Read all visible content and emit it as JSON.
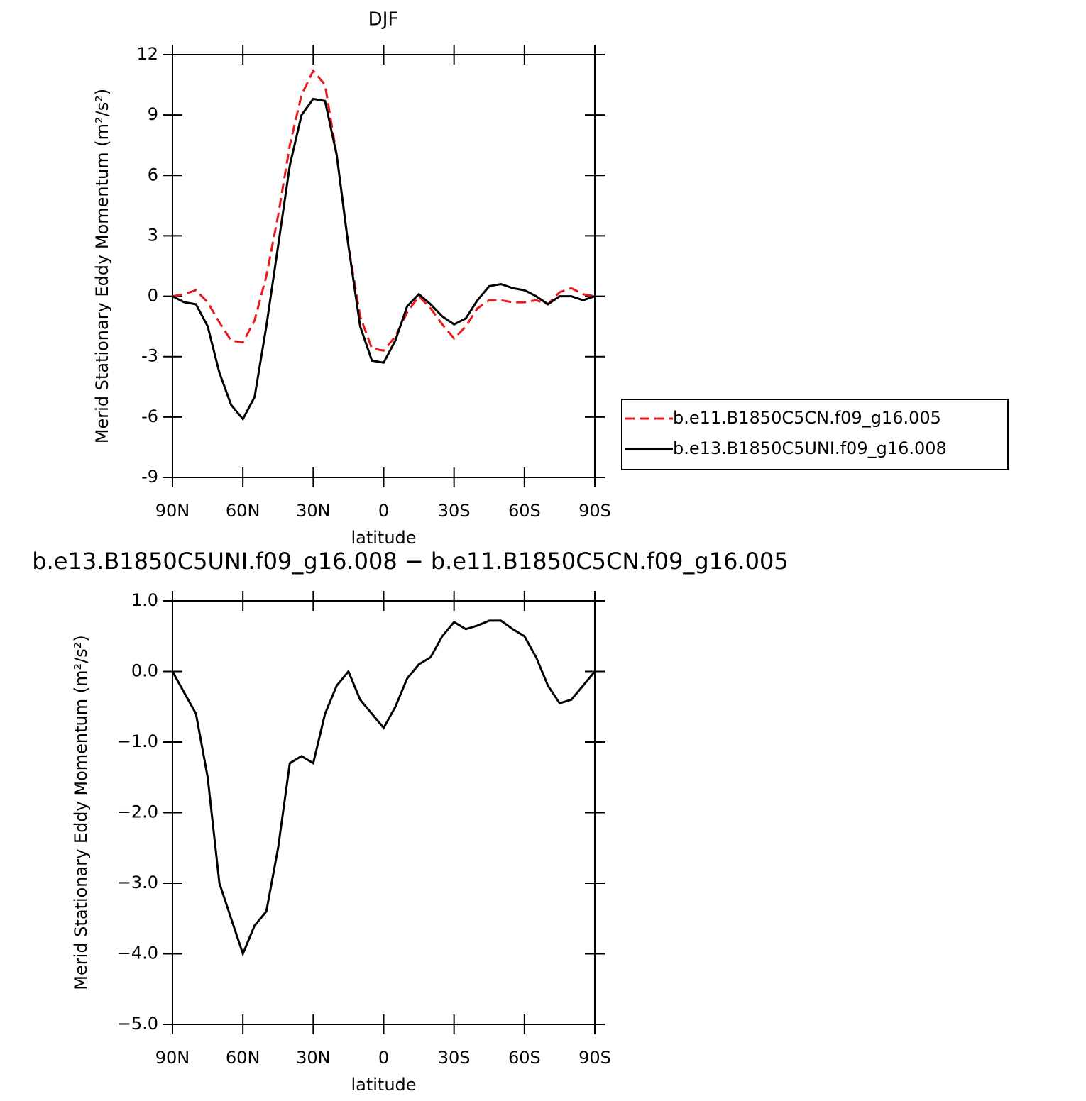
{
  "chart_data": [
    {
      "type": "line",
      "title": "DJF",
      "xlabel": "latitude",
      "ylabel": "Merid Stationary Eddy Momentum (m²/s²)",
      "x": [
        90,
        85,
        80,
        75,
        70,
        65,
        60,
        55,
        50,
        45,
        40,
        35,
        30,
        25,
        20,
        15,
        10,
        5,
        0,
        -5,
        -10,
        -15,
        -20,
        -25,
        -30,
        -35,
        -40,
        -45,
        -50,
        -55,
        -60,
        -65,
        -70,
        -75,
        -80,
        -85,
        -90
      ],
      "xlim": [
        90,
        -90
      ],
      "xticks": [
        {
          "value": 90,
          "label": "90N"
        },
        {
          "value": 60,
          "label": "60N"
        },
        {
          "value": 30,
          "label": "30N"
        },
        0,
        {
          "value": -30,
          "label": "30S"
        },
        {
          "value": -60,
          "label": "60S"
        },
        {
          "value": -90,
          "label": "90S"
        }
      ],
      "ylim": [
        -9,
        12
      ],
      "yticks": [
        12,
        9,
        6,
        3,
        0,
        -3,
        -6,
        -9
      ],
      "series": [
        {
          "name": "b.e11.B1850C5CN.f09_g16.005",
          "color": "#e8191c",
          "dash": true,
          "values": [
            0,
            0.1,
            0.3,
            -0.3,
            -1.3,
            -2.2,
            -2.3,
            -1.2,
            1.0,
            4.0,
            7.5,
            10.0,
            11.2,
            10.5,
            7.0,
            2.5,
            -1.0,
            -2.6,
            -2.7,
            -2.0,
            -0.8,
            0.0,
            -0.6,
            -1.4,
            -2.1,
            -1.5,
            -0.6,
            -0.2,
            -0.2,
            -0.3,
            -0.3,
            -0.2,
            -0.4,
            0.2,
            0.4,
            0.1,
            0.0
          ]
        },
        {
          "name": "b.e13.B1850C5UNI.f09_g16.008",
          "color": "#000000",
          "dash": false,
          "values": [
            0,
            -0.3,
            -0.4,
            -1.5,
            -3.8,
            -5.4,
            -6.1,
            -5.0,
            -1.5,
            2.5,
            6.5,
            9.0,
            9.8,
            9.7,
            7.0,
            2.5,
            -1.5,
            -3.2,
            -3.3,
            -2.2,
            -0.5,
            0.1,
            -0.4,
            -1.0,
            -1.4,
            -1.1,
            -0.2,
            0.5,
            0.6,
            0.4,
            0.3,
            0.0,
            -0.4,
            0.0,
            0.0,
            -0.2,
            0.0
          ]
        }
      ]
    },
    {
      "type": "line",
      "title": "b.e13.B1850C5UNI.f09_g16.008 − b.e11.B1850C5CN.f09_g16.005",
      "xlabel": "latitude",
      "ylabel": "Merid Stationary Eddy Momentum (m²/s²)",
      "x": [
        90,
        85,
        80,
        75,
        70,
        65,
        60,
        55,
        50,
        45,
        40,
        35,
        30,
        25,
        20,
        15,
        10,
        5,
        0,
        -5,
        -10,
        -15,
        -20,
        -25,
        -30,
        -35,
        -40,
        -45,
        -50,
        -55,
        -60,
        -65,
        -70,
        -75,
        -80,
        -85,
        -90
      ],
      "xlim": [
        90,
        -90
      ],
      "xticks": [
        {
          "value": 90,
          "label": "90N"
        },
        {
          "value": 60,
          "label": "60N"
        },
        {
          "value": 30,
          "label": "30N"
        },
        0,
        {
          "value": -30,
          "label": "30S"
        },
        {
          "value": -60,
          "label": "60S"
        },
        {
          "value": -90,
          "label": "90S"
        }
      ],
      "ylim": [
        -5,
        1
      ],
      "yticks": [
        {
          "value": 1,
          "label": "1.0"
        },
        {
          "value": 0,
          "label": "0.0"
        },
        {
          "value": -1,
          "label": "−1.0"
        },
        {
          "value": -2,
          "label": "−2.0"
        },
        {
          "value": -3,
          "label": "−3.0"
        },
        {
          "value": -4,
          "label": "−4.0"
        },
        {
          "value": -5,
          "label": "−5.0"
        }
      ],
      "series": [
        {
          "color": "#000000",
          "dash": false,
          "values": [
            0,
            -0.3,
            -0.6,
            -1.5,
            -3.0,
            -3.5,
            -4.0,
            -3.6,
            -3.4,
            -2.5,
            -1.3,
            -1.2,
            -1.3,
            -0.6,
            -0.2,
            0.0,
            -0.4,
            -0.6,
            -0.8,
            -0.5,
            -0.1,
            0.1,
            0.2,
            0.5,
            0.7,
            0.6,
            0.65,
            0.72,
            0.72,
            0.6,
            0.5,
            0.2,
            -0.2,
            -0.45,
            -0.4,
            -0.2,
            0
          ]
        }
      ]
    }
  ]
}
